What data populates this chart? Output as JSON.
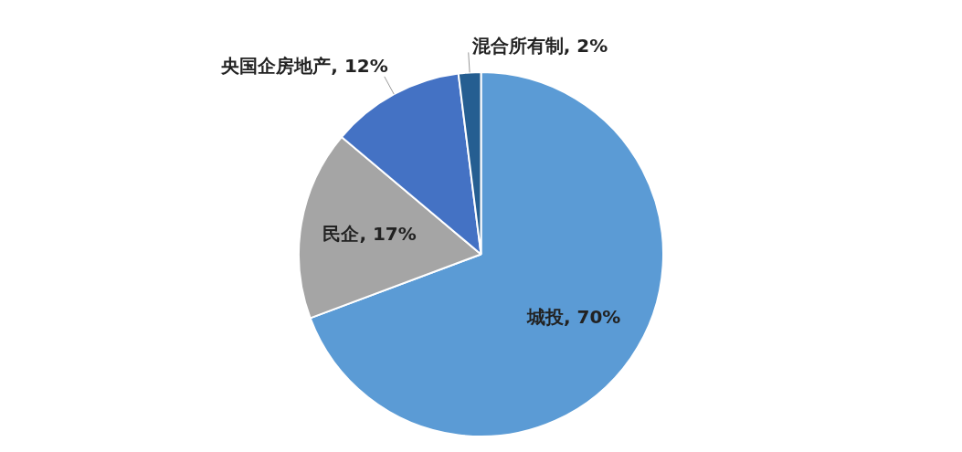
{
  "chart_data": {
    "type": "pie",
    "categories": [
      "城投",
      "民企",
      "央国企房地产",
      "混合所有制"
    ],
    "values": [
      70,
      17,
      12,
      2
    ],
    "value_labels": [
      "70%",
      "17%",
      "12%",
      "2%"
    ],
    "colors": [
      "#5b9bd5",
      "#a5a5a5",
      "#4472c4",
      "#255e91"
    ],
    "legend": false
  }
}
